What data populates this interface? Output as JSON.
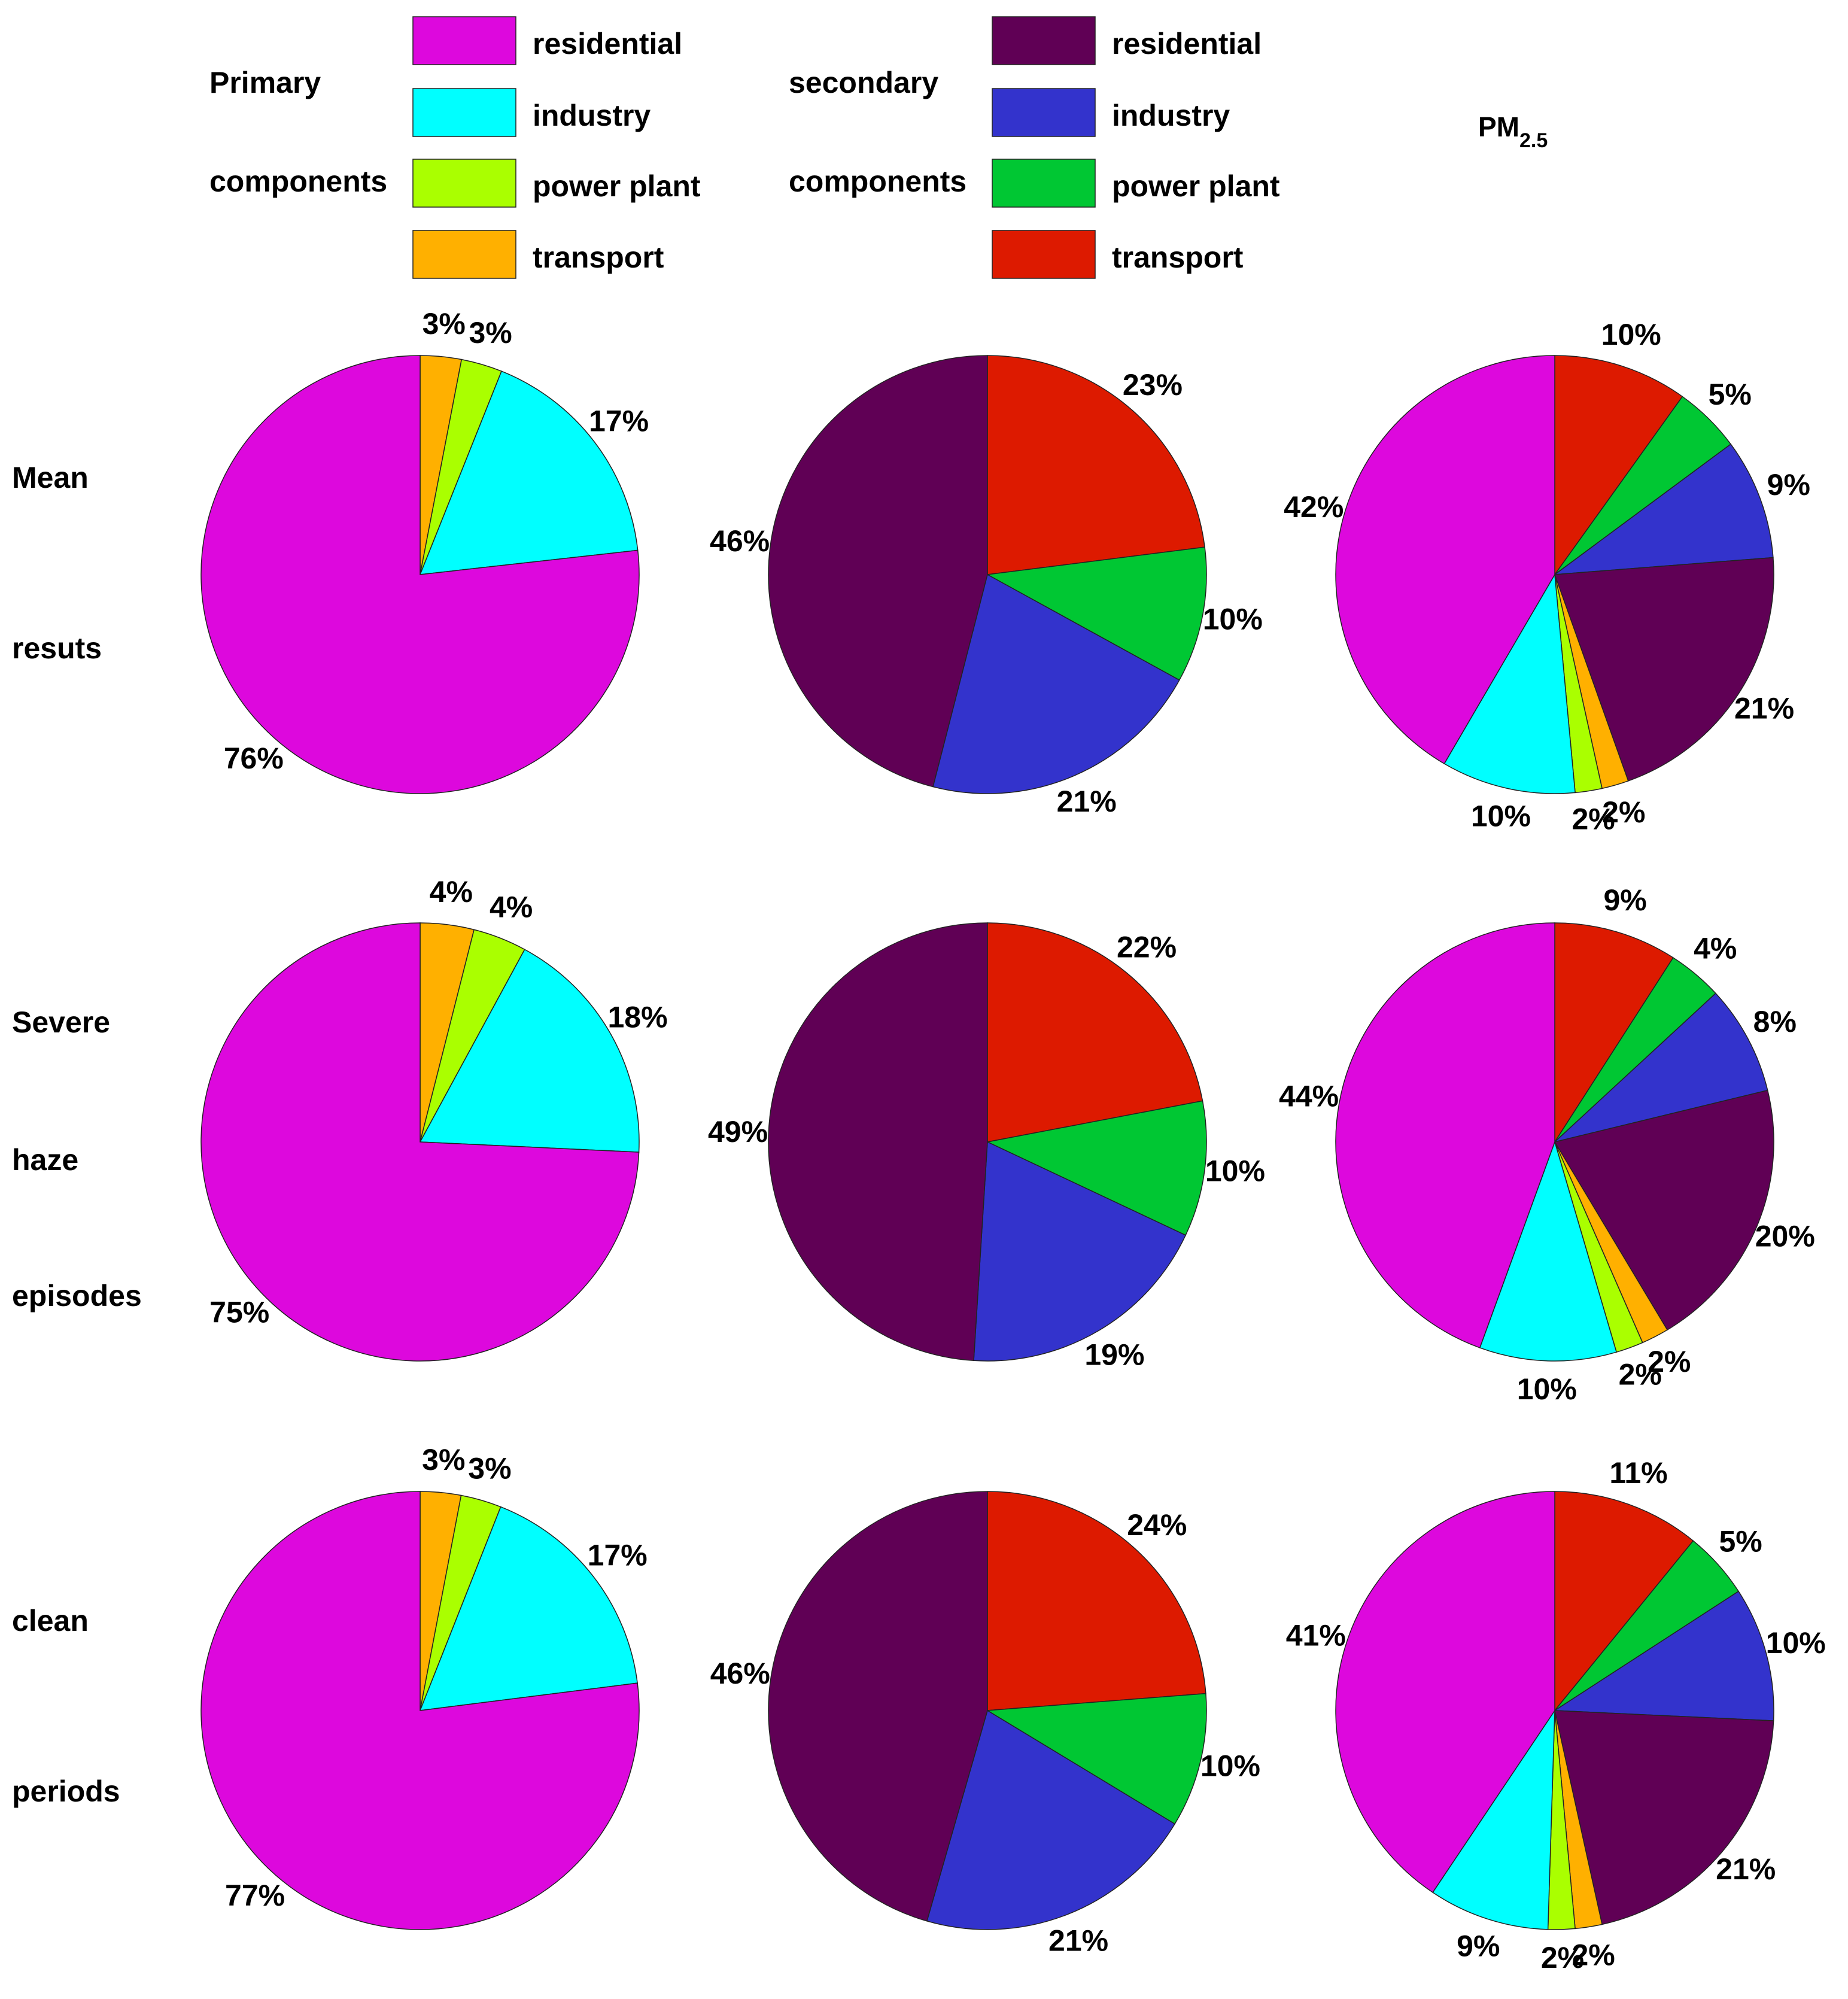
{
  "legend": {
    "primary": {
      "title_line1": "Primary",
      "title_line2": "components",
      "items": [
        {
          "label": "residential",
          "color": "#DD08DD"
        },
        {
          "label": "industry",
          "color": "#00FFFF"
        },
        {
          "label": "power plant",
          "color": "#AAFF00"
        },
        {
          "label": "transport",
          "color": "#FFB000"
        }
      ]
    },
    "secondary": {
      "title_line1": "secondary",
      "title_line2": "components",
      "items": [
        {
          "label": "residential",
          "color": "#600055"
        },
        {
          "label": "industry",
          "color": "#3333CC"
        },
        {
          "label": "power plant",
          "color": "#00C733"
        },
        {
          "label": "transport",
          "color": "#DD1A00"
        }
      ]
    },
    "pm_title": "PM",
    "pm_subscript": "2.5"
  },
  "rows": [
    {
      "line1": "Mean",
      "line2": "resuts",
      "line3": ""
    },
    {
      "line1": "Severe",
      "line2": "haze",
      "line3": "episodes"
    },
    {
      "line1": "clean",
      "line2": "periods",
      "line3": ""
    }
  ],
  "chart_data": [
    {
      "type": "pie",
      "row": "Mean resuts",
      "column": "Primary components",
      "labels": [
        "transport",
        "power plant",
        "industry",
        "residential"
      ],
      "values": [
        3,
        3,
        17,
        76
      ],
      "slice_labels": [
        "3%",
        "3%",
        "17%",
        "76%"
      ],
      "colors": [
        "#FFB000",
        "#AAFF00",
        "#00FFFF",
        "#DD08DD"
      ]
    },
    {
      "type": "pie",
      "row": "Mean resuts",
      "column": "secondary components",
      "labels": [
        "transport",
        "power plant",
        "industry",
        "residential"
      ],
      "values": [
        23,
        10,
        21,
        46
      ],
      "slice_labels": [
        "23%",
        "10%",
        "21%",
        "46%"
      ],
      "colors": [
        "#DD1A00",
        "#00C733",
        "#3333CC",
        "#600055"
      ]
    },
    {
      "type": "pie",
      "row": "Mean resuts",
      "column": "PM2.5",
      "labels": [
        "secondary transport",
        "secondary power plant",
        "secondary industry",
        "secondary residential",
        "primary transport",
        "primary power plant",
        "primary industry",
        "primary residential"
      ],
      "values": [
        10,
        5,
        9,
        21,
        2,
        2,
        10,
        42
      ],
      "slice_labels": [
        "10%",
        "5%",
        "9%",
        "21%",
        "2%",
        "2%",
        "10%",
        "42%"
      ],
      "colors": [
        "#DD1A00",
        "#00C733",
        "#3333CC",
        "#600055",
        "#FFB000",
        "#AAFF00",
        "#00FFFF",
        "#DD08DD"
      ]
    },
    {
      "type": "pie",
      "row": "Severe haze episodes",
      "column": "Primary components",
      "labels": [
        "transport",
        "power plant",
        "industry",
        "residential"
      ],
      "values": [
        4,
        4,
        18,
        75
      ],
      "slice_labels": [
        "4%",
        "4%",
        "18%",
        "75%"
      ],
      "colors": [
        "#FFB000",
        "#AAFF00",
        "#00FFFF",
        "#DD08DD"
      ]
    },
    {
      "type": "pie",
      "row": "Severe haze episodes",
      "column": "secondary components",
      "labels": [
        "transport",
        "power plant",
        "industry",
        "residential"
      ],
      "values": [
        22,
        10,
        19,
        49
      ],
      "slice_labels": [
        "22%",
        "10%",
        "19%",
        "49%"
      ],
      "colors": [
        "#DD1A00",
        "#00C733",
        "#3333CC",
        "#600055"
      ]
    },
    {
      "type": "pie",
      "row": "Severe haze episodes",
      "column": "PM2.5",
      "labels": [
        "secondary transport",
        "secondary power plant",
        "secondary industry",
        "secondary residential",
        "primary transport",
        "primary power plant",
        "primary industry",
        "primary residential"
      ],
      "values": [
        9,
        4,
        8,
        20,
        2,
        2,
        10,
        44
      ],
      "slice_labels": [
        "9%",
        "4%",
        "8%",
        "20%",
        "2%",
        "2%",
        "10%",
        "44%"
      ],
      "colors": [
        "#DD1A00",
        "#00C733",
        "#3333CC",
        "#600055",
        "#FFB000",
        "#AAFF00",
        "#00FFFF",
        "#DD08DD"
      ]
    },
    {
      "type": "pie",
      "row": "clean periods",
      "column": "Primary components",
      "labels": [
        "transport",
        "power plant",
        "industry",
        "residential"
      ],
      "values": [
        3,
        3,
        17,
        77
      ],
      "slice_labels": [
        "3%",
        "3%",
        "17%",
        "77%"
      ],
      "colors": [
        "#FFB000",
        "#AAFF00",
        "#00FFFF",
        "#DD08DD"
      ]
    },
    {
      "type": "pie",
      "row": "clean periods",
      "column": "secondary components",
      "labels": [
        "transport",
        "power plant",
        "industry",
        "residential"
      ],
      "values": [
        24,
        10,
        21,
        46
      ],
      "slice_labels": [
        "24%",
        "10%",
        "21%",
        "46%"
      ],
      "colors": [
        "#DD1A00",
        "#00C733",
        "#3333CC",
        "#600055"
      ]
    },
    {
      "type": "pie",
      "row": "clean periods",
      "column": "PM2.5",
      "labels": [
        "secondary transport",
        "secondary power plant",
        "secondary industry",
        "secondary residential",
        "primary transport",
        "primary power plant",
        "primary industry",
        "primary residential"
      ],
      "values": [
        11,
        5,
        10,
        21,
        2,
        2,
        9,
        41
      ],
      "slice_labels": [
        "11%",
        "5%",
        "10%",
        "21%",
        "2%",
        "2%",
        "9%",
        "41%"
      ],
      "colors": [
        "#DD1A00",
        "#00C733",
        "#3333CC",
        "#600055",
        "#FFB000",
        "#AAFF00",
        "#00FFFF",
        "#DD08DD"
      ]
    }
  ]
}
